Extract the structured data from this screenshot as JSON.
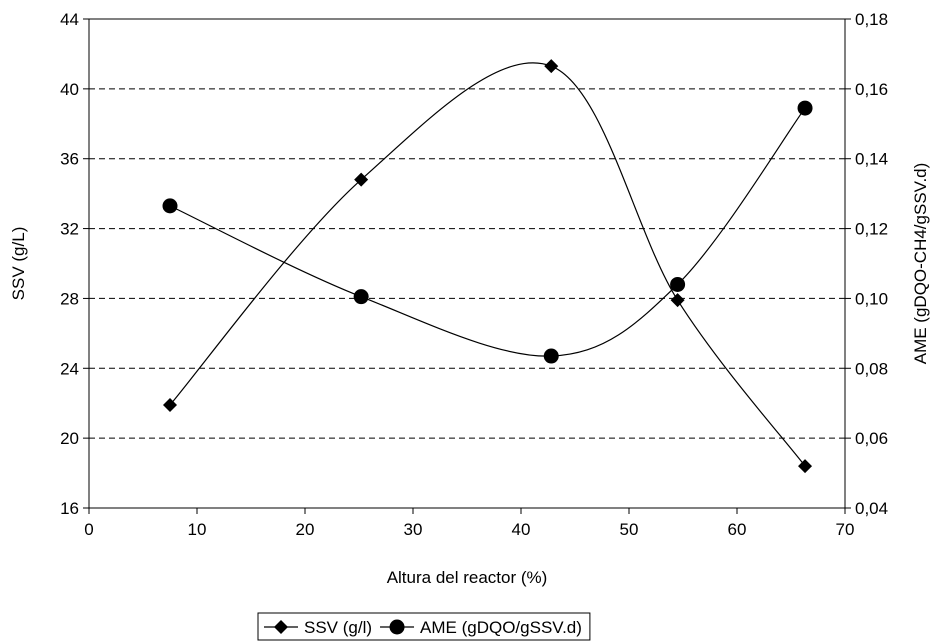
{
  "chart_data": {
    "type": "scatter",
    "title": "",
    "xlabel": "Altura del reactor (%)",
    "ylabel_left": "SSV (g/L)",
    "ylabel_right": "AME (gDQO-CH4/gSSV.d)",
    "xlim": [
      0,
      70
    ],
    "ylim_left": [
      16,
      44
    ],
    "ylim_right": [
      0.04,
      0.18
    ],
    "x_ticks": [
      "0",
      "10",
      "20",
      "30",
      "40",
      "50",
      "60",
      "70"
    ],
    "y_left_ticks": [
      "16",
      "20",
      "24",
      "28",
      "32",
      "36",
      "40",
      "44"
    ],
    "y_right_ticks": [
      "0,04",
      "0,06",
      "0,08",
      "0,10",
      "0,12",
      "0,14",
      "0,16",
      "0,18"
    ],
    "grid": "horizontal dashed",
    "legend_position": "bottom",
    "series": [
      {
        "name": "SSV (g/l)",
        "axis": "left",
        "marker": "diamond",
        "smooth": true,
        "color": "#000000",
        "x": [
          7.5,
          25.2,
          42.8,
          54.5,
          66.3
        ],
        "y": [
          21.9,
          34.8,
          41.3,
          27.9,
          18.4
        ]
      },
      {
        "name": "AME (gDQO/gSSV.d)",
        "axis": "right",
        "marker": "circle",
        "smooth": true,
        "color": "#000000",
        "x": [
          7.5,
          25.2,
          42.8,
          54.5,
          66.3
        ],
        "y": [
          0.1265,
          0.1005,
          0.0835,
          0.104,
          0.1545
        ]
      }
    ]
  }
}
